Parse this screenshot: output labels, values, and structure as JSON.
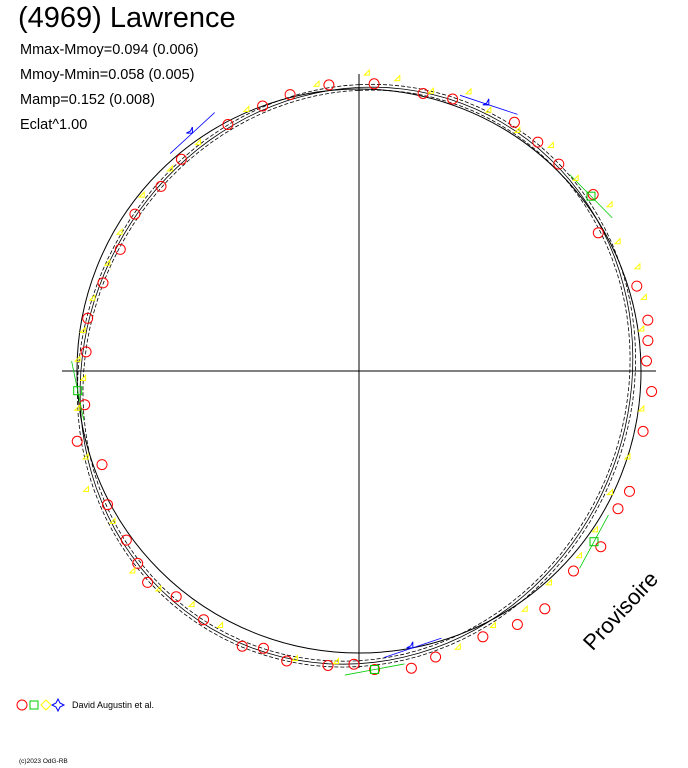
{
  "chart_data": {
    "type": "scatter",
    "title": "(4969) Lawrence",
    "stats": [
      "Mmax-Mmoy=0.094 (0.006)",
      "Mmoy-Mmin=0.058 (0.005)",
      "Mamp=0.152 (0.008)",
      "Eclat^1.00"
    ],
    "legend": {
      "label": "David Augustin et al.",
      "markers": [
        "circle",
        "square",
        "diamond",
        "star"
      ]
    },
    "watermark": "Provisoire",
    "credit": "(c)2023 OdG-RB",
    "grid": "crosshair axes only",
    "colors": {
      "circle": "#ff0000",
      "square": "#00cc00",
      "diamond": "#ffff00",
      "star": "#0000ff",
      "curve": "#000000"
    },
    "series": [
      {
        "marker": "circle",
        "phase_deg": [
          3,
          13,
          19,
          32,
          38,
          44,
          53,
          60,
          73,
          80,
          84,
          88,
          94,
          102,
          114,
          118,
          126,
          133,
          142,
          148,
          155,
          165,
          170,
          177,
          181,
          186,
          194,
          199,
          203,
          212,
          219,
          225,
          229,
          234,
          242,
          250,
          256,
          263,
          274,
          281,
          289,
          297,
          305,
          313,
          320,
          332,
          340,
          346,
          354
        ],
        "brightness": [
          1.02,
          1.01,
          1.02,
          1.04,
          1.03,
          1.02,
          1.04,
          0.98,
          1.03,
          1.04,
          1.03,
          1.02,
          1.04,
          1.03,
          1.05,
          1.04,
          1.06,
          1.04,
          1.07,
          1.06,
          1.04,
          1.05,
          1.07,
          1.06,
          1.04,
          1.05,
          1.06,
          1.04,
          1.06,
          1.04,
          1.03,
          1.06,
          1.04,
          1.02,
          1.01,
          0.97,
          1.03,
          0.98,
          0.97,
          0.98,
          0.96,
          0.95,
          0.97,
          0.96,
          0.98,
          0.99,
          1.0,
          1.01,
          1.02
        ]
      },
      {
        "marker": "square",
        "phase_deg": [
          53,
          126,
          177,
          266
        ],
        "brightness": [
          1.03,
          1.03,
          1.06,
          1.0
        ]
      },
      {
        "marker": "diamond",
        "phase_deg": [
          2,
          8,
          15,
          22,
          27,
          34,
          41,
          49,
          57,
          64,
          70,
          76,
          82,
          98,
          108,
          116,
          124,
          130,
          138,
          145,
          152,
          160,
          184,
          192,
          208,
          215,
          222,
          228,
          238,
          246,
          252,
          262,
          268,
          272,
          278,
          285,
          293,
          300,
          309,
          317,
          325,
          337,
          352
        ],
        "brightness": [
          1.05,
          1.04,
          1.02,
          1.06,
          1.03,
          1.02,
          1.05,
          1.03,
          1.07,
          1.03,
          1.06,
          1.05,
          1.02,
          1.02,
          1.01,
          1.0,
          1.02,
          1.03,
          1.02,
          1.04,
          1.03,
          1.05,
          1.04,
          1.05,
          1.03,
          1.02,
          1.05,
          1.07,
          1.02,
          1.05,
          1.01,
          1.0,
          0.97,
          0.99,
          0.98,
          0.97,
          0.96,
          0.97,
          0.98,
          0.97,
          0.98,
          1.0,
          1.02
        ]
      },
      {
        "marker": "star",
        "phase_deg": [
          26,
          169,
          325
        ],
        "brightness": [
          1.05,
          1.0,
          1.03
        ]
      }
    ]
  }
}
